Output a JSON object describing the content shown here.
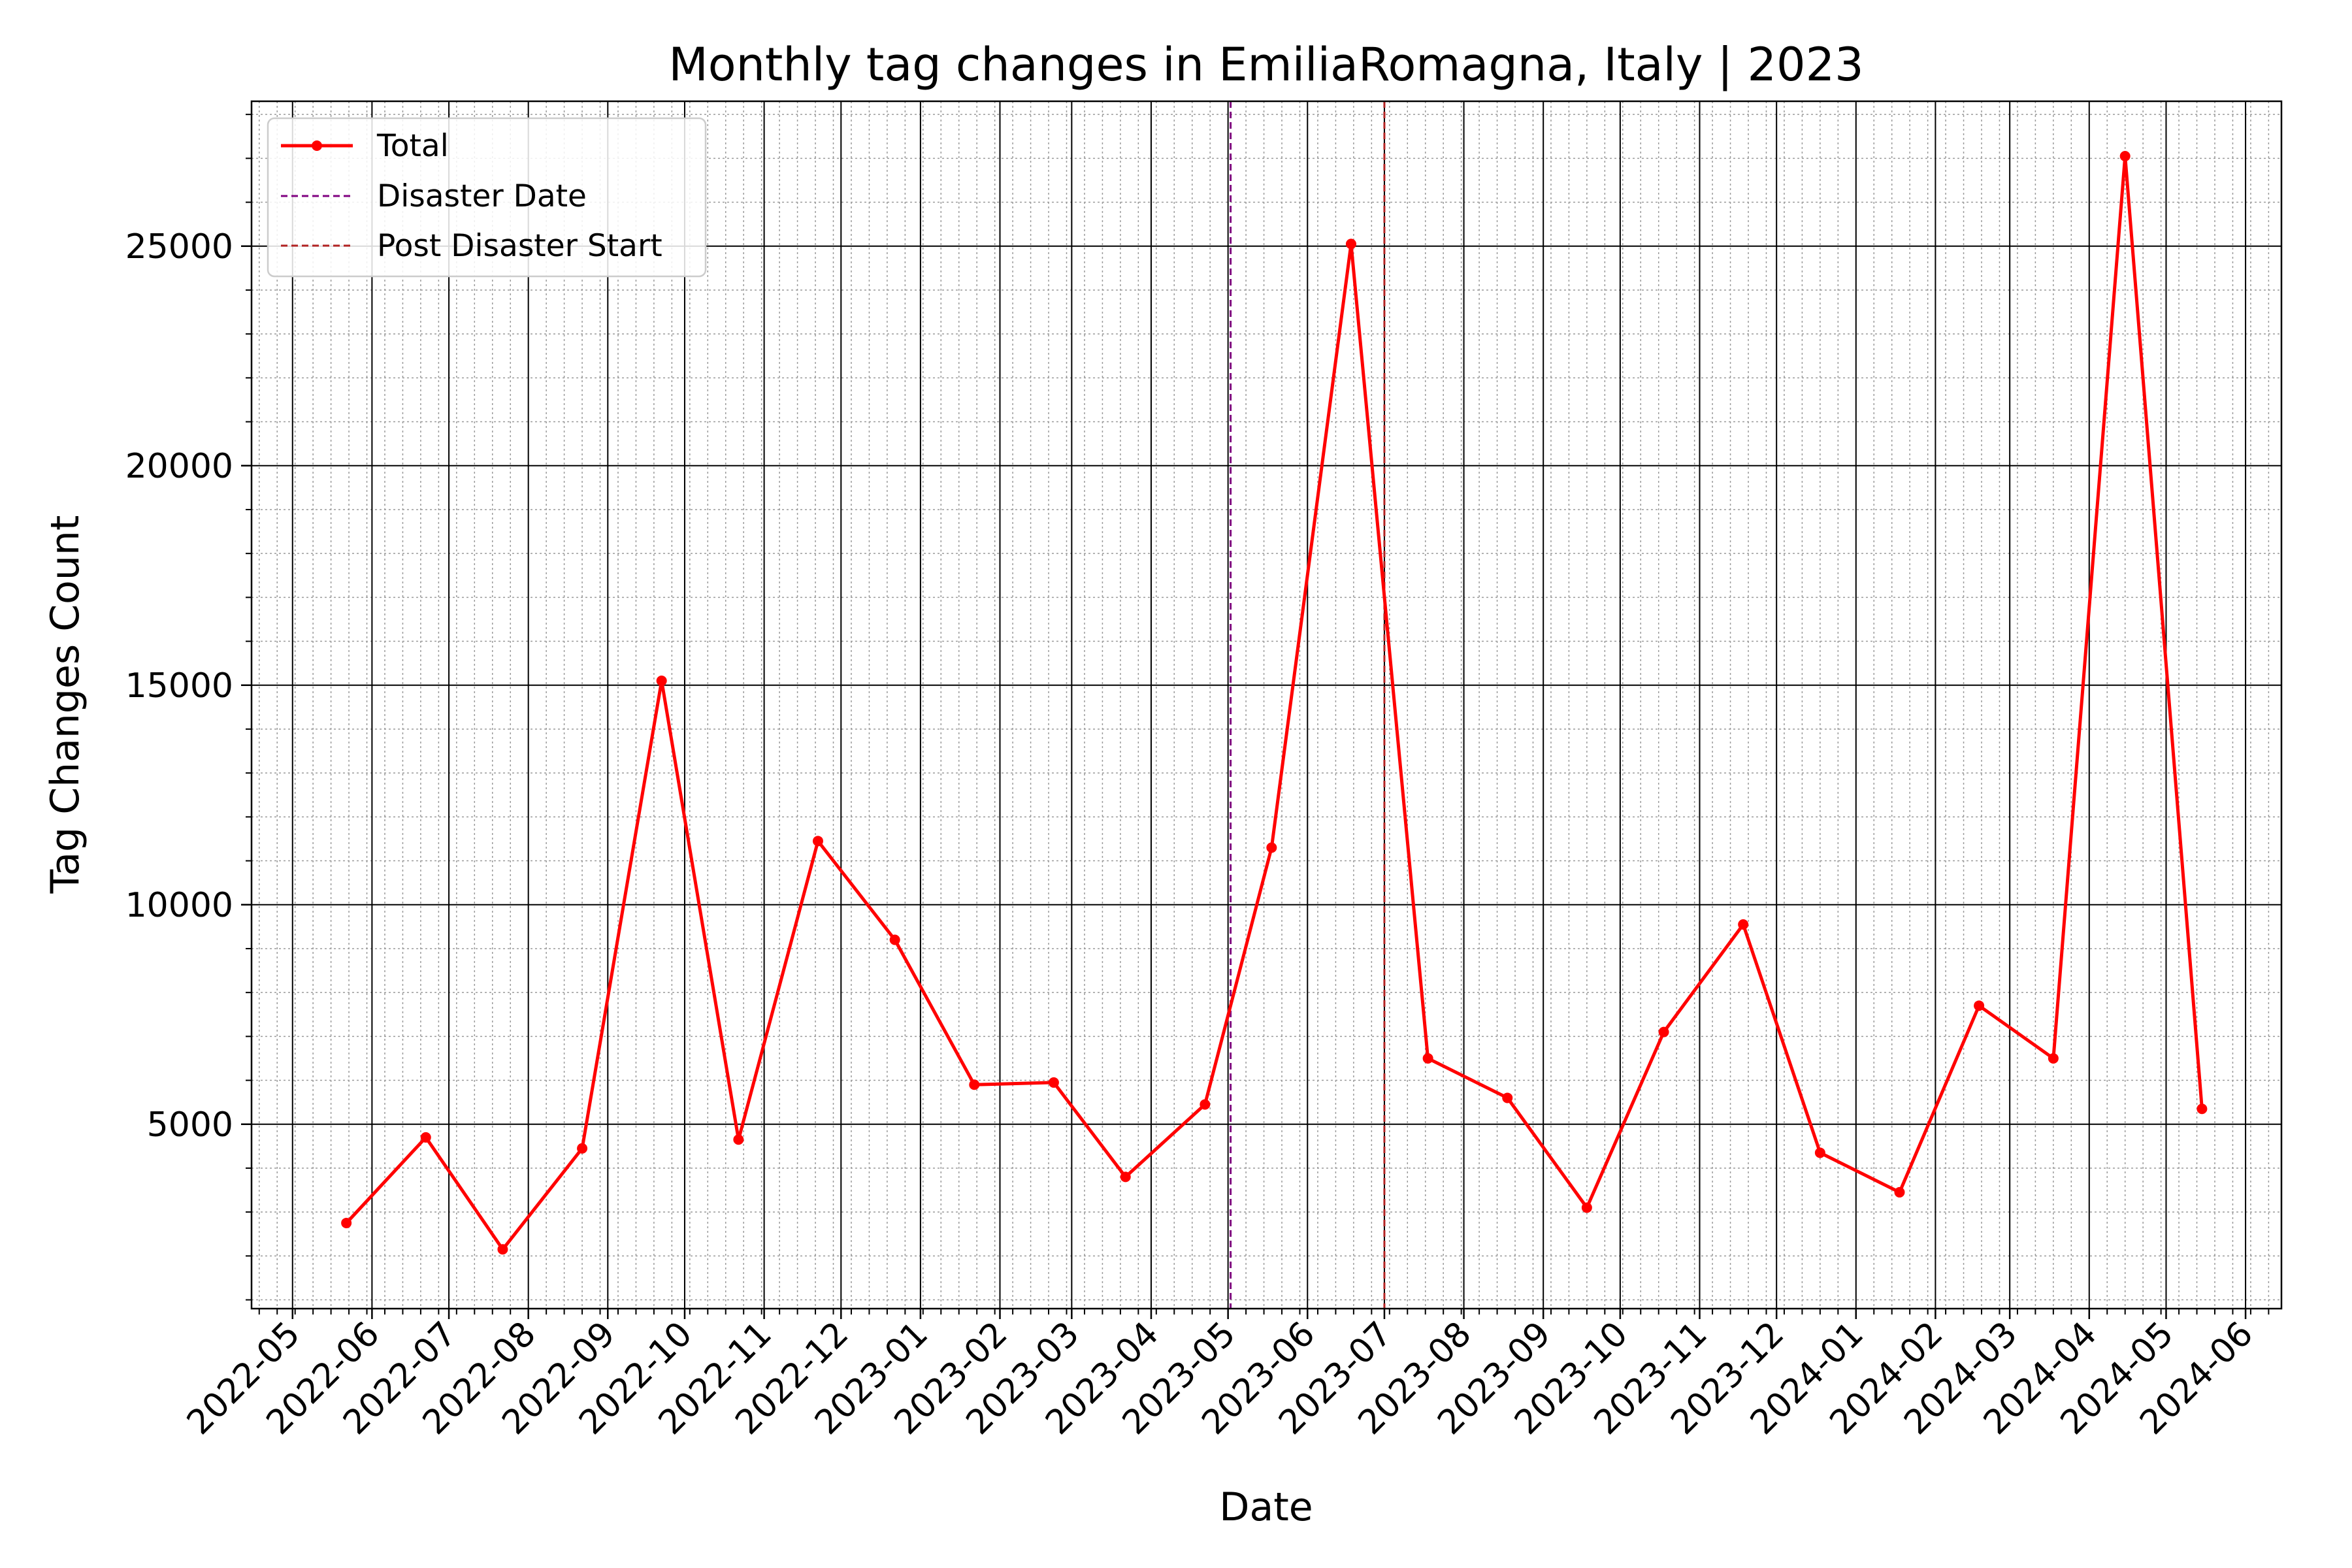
{
  "chart_data": {
    "type": "line",
    "title": "Monthly tag changes in EmiliaRomagna, Italy | 2023",
    "xlabel": "Date",
    "ylabel": "Tag Changes Count",
    "xlim": [
      "2022-04-15",
      "2024-06-15"
    ],
    "ylim": [
      800,
      28300
    ],
    "x_ticks": [
      "2022-05",
      "2022-06",
      "2022-07",
      "2022-08",
      "2022-09",
      "2022-10",
      "2022-11",
      "2022-12",
      "2023-01",
      "2023-02",
      "2023-03",
      "2023-04",
      "2023-05",
      "2023-06",
      "2023-07",
      "2023-08",
      "2023-09",
      "2023-10",
      "2023-11",
      "2023-12",
      "2024-01",
      "2024-02",
      "2024-03",
      "2024-04",
      "2024-05",
      "2024-06"
    ],
    "y_ticks": [
      5000,
      10000,
      15000,
      20000,
      25000
    ],
    "grid": true,
    "minor_grid": true,
    "legend_position": "top-left",
    "series": [
      {
        "name": "Total",
        "color": "#ff0000",
        "marker": "circle",
        "points": [
          {
            "x": "2022-05-22",
            "y": 2750
          },
          {
            "x": "2022-06-22",
            "y": 4700
          },
          {
            "x": "2022-07-22",
            "y": 2150
          },
          {
            "x": "2022-08-22",
            "y": 4450
          },
          {
            "x": "2022-09-22",
            "y": 15100
          },
          {
            "x": "2022-10-22",
            "y": 4650
          },
          {
            "x": "2022-11-22",
            "y": 11450
          },
          {
            "x": "2022-12-22",
            "y": 9200
          },
          {
            "x": "2023-01-22",
            "y": 5900
          },
          {
            "x": "2023-02-22",
            "y": 5950
          },
          {
            "x": "2023-03-22",
            "y": 3800
          },
          {
            "x": "2023-04-22",
            "y": 5450
          },
          {
            "x": "2023-05-18",
            "y": 11300
          },
          {
            "x": "2023-06-18",
            "y": 25050
          },
          {
            "x": "2023-07-18",
            "y": 6500
          },
          {
            "x": "2023-08-18",
            "y": 5600
          },
          {
            "x": "2023-09-18",
            "y": 3100
          },
          {
            "x": "2023-10-18",
            "y": 7100
          },
          {
            "x": "2023-11-18",
            "y": 9550
          },
          {
            "x": "2023-12-18",
            "y": 4350
          },
          {
            "x": "2024-01-18",
            "y": 3450
          },
          {
            "x": "2024-02-18",
            "y": 7700
          },
          {
            "x": "2024-03-18",
            "y": 6500
          },
          {
            "x": "2024-04-15",
            "y": 27050
          },
          {
            "x": "2024-05-15",
            "y": 5350
          }
        ]
      }
    ],
    "vlines": [
      {
        "name": "Disaster Date",
        "x": "2023-05-02",
        "color": "#800080",
        "style": "dashed"
      },
      {
        "name": "Post Disaster Start",
        "x": "2023-07-01",
        "color": "#b22222",
        "style": "dashed"
      }
    ]
  }
}
